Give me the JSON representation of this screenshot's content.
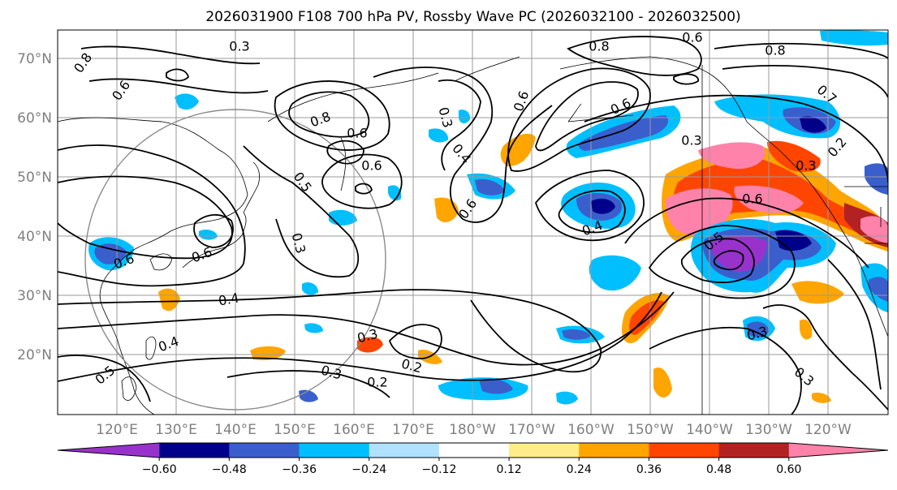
{
  "title": "2026031900 F108 700 hPa PV, Rossby Wave PC (2026032100 - 2026032500)",
  "latitude_labels": [
    "70°N",
    "60°N",
    "50°N",
    "40°N",
    "30°N",
    "20°N"
  ],
  "longitude_labels": [
    "120°E",
    "130°E",
    "140°E",
    "150°E",
    "160°E",
    "170°E",
    "180°W",
    "170°W",
    "160°W",
    "150°W",
    "140°W",
    "130°W",
    "120°W"
  ],
  "colorbar": {
    "tick_labels": [
      "−0.60",
      "−0.48",
      "−0.36",
      "−0.24",
      "−0.12",
      "0.12",
      "0.24",
      "0.36",
      "0.48",
      "0.60"
    ],
    "colors": [
      "#9932cc",
      "#00008b",
      "#3a5fcd",
      "#00bfff",
      "#b0e2ff",
      "#ffffff",
      "#ffec8b",
      "#ffa500",
      "#ff4500",
      "#b22222",
      "#ff82ab"
    ]
  },
  "contour_labels": [
    "0.8",
    "0.3",
    "0.6",
    "0.8",
    "0.6",
    "0.5",
    "0.6",
    "0.3",
    "0.4",
    "0.6",
    "0.6",
    "0.8",
    "0.6",
    "0.3",
    "0.7",
    "0.6",
    "0.5",
    "0.8",
    "0.3",
    "0.6",
    "0.4",
    "0.4",
    "0.3",
    "0.2",
    "0.2",
    "0.3",
    "0.6",
    "0.3",
    "0.6",
    "0.4",
    "0.5",
    "0.3",
    "0.3",
    "0.2"
  ]
}
